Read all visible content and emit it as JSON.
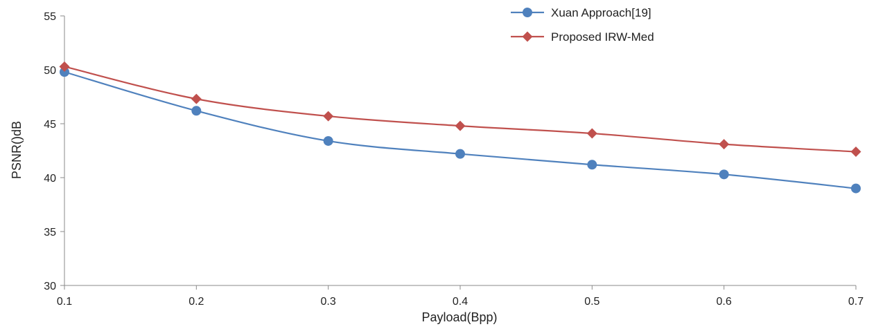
{
  "chart_data": {
    "type": "line",
    "title": "",
    "xlabel": "Payload(Bpp)",
    "ylabel": "PSNR()dB",
    "x": [
      0.1,
      0.2,
      0.3,
      0.4,
      0.5,
      0.6,
      0.7
    ],
    "x_tick_labels": [
      "0.1",
      "0.2",
      "0.3",
      "0.4",
      "0.5",
      "0.6",
      "0.7"
    ],
    "y_ticks": [
      30,
      35,
      40,
      45,
      50,
      55
    ],
    "y_tick_labels": [
      "30",
      "35",
      "40",
      "45",
      "50",
      "55"
    ],
    "xlim": [
      0.1,
      0.7
    ],
    "ylim": [
      30,
      55
    ],
    "grid": false,
    "legend_position": "top-right",
    "series": [
      {
        "name": "Xuan Approach[19]",
        "color": "#4F81BD",
        "marker": "circle",
        "values": [
          49.8,
          46.2,
          43.4,
          42.2,
          41.2,
          40.3,
          39.0
        ]
      },
      {
        "name": "Proposed IRW-Med",
        "color": "#C0504D",
        "marker": "diamond",
        "values": [
          50.3,
          47.3,
          45.7,
          44.8,
          44.1,
          43.1,
          42.4
        ]
      }
    ]
  }
}
